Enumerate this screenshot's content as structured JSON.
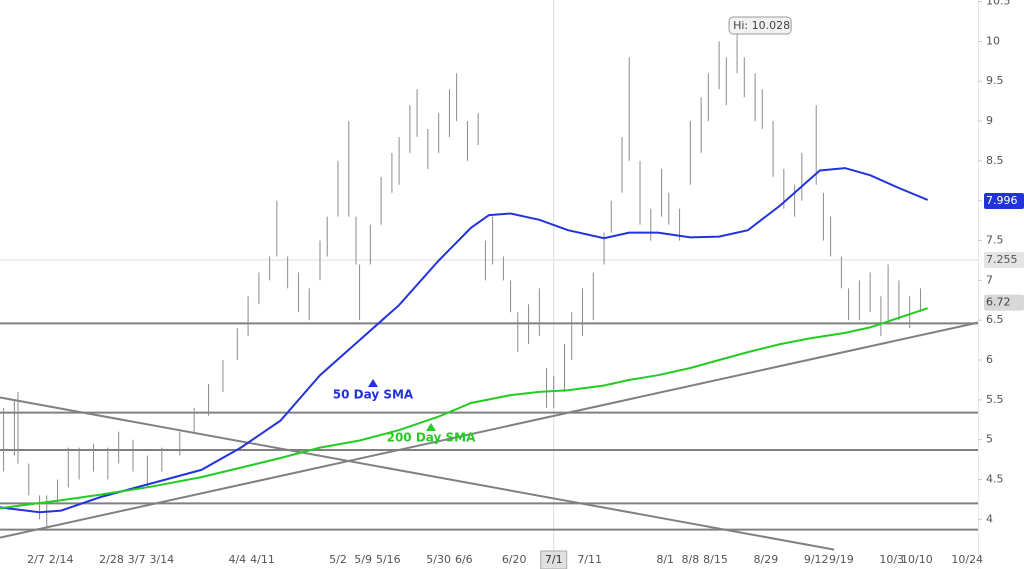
{
  "chart_data": {
    "type": "ohlc",
    "x": [
      "1/29",
      "2/1",
      "2/2",
      "2/5",
      "2/8",
      "2/10",
      "2/13",
      "2/16",
      "2/19",
      "2/23",
      "2/27",
      "3/2",
      "3/6",
      "3/10",
      "3/14",
      "3/19",
      "3/23",
      "3/27",
      "3/31",
      "4/4",
      "4/7",
      "4/10",
      "4/13",
      "4/15",
      "4/18",
      "4/21",
      "4/24",
      "4/27",
      "4/29",
      "5/2",
      "5/5",
      "5/7",
      "5/8",
      "5/11",
      "5/14",
      "5/17",
      "5/19",
      "5/22",
      "5/24",
      "5/27",
      "5/30",
      "6/2",
      "6/4",
      "6/7",
      "6/10",
      "6/12",
      "6/14",
      "6/17",
      "6/19",
      "6/21",
      "6/24",
      "6/27",
      "6/29",
      "7/1",
      "7/4",
      "7/6",
      "7/9",
      "7/12",
      "7/15",
      "7/17",
      "7/20",
      "7/22",
      "7/25",
      "7/28",
      "7/31",
      "8/2",
      "8/5",
      "8/8",
      "8/11",
      "8/13",
      "8/16",
      "8/18",
      "8/21",
      "8/23",
      "8/26",
      "8/28",
      "8/31",
      "9/3",
      "9/6",
      "9/8",
      "9/12",
      "9/14",
      "9/16",
      "9/19",
      "9/21",
      "9/24",
      "9/27",
      "9/30",
      "10/2",
      "10/5",
      "10/8",
      "10/11"
    ],
    "low": [
      4.6,
      4.8,
      4.7,
      4.3,
      4.0,
      3.9,
      4.2,
      4.4,
      4.5,
      4.6,
      4.5,
      4.7,
      4.6,
      4.4,
      4.6,
      4.8,
      5.1,
      5.3,
      5.6,
      6.0,
      6.3,
      6.7,
      7.0,
      7.3,
      6.9,
      6.6,
      6.5,
      7.0,
      7.3,
      7.8,
      7.8,
      7.2,
      6.5,
      7.2,
      7.7,
      8.1,
      8.2,
      8.6,
      8.8,
      8.4,
      8.6,
      8.8,
      9.0,
      8.5,
      8.7,
      7.0,
      7.2,
      7.0,
      6.6,
      6.1,
      6.2,
      6.3,
      5.4,
      5.4,
      5.6,
      6.0,
      6.3,
      6.5,
      7.2,
      7.6,
      8.1,
      8.5,
      7.7,
      7.5,
      7.8,
      7.7,
      7.5,
      8.2,
      8.6,
      9.0,
      9.4,
      9.2,
      9.6,
      9.3,
      9.0,
      8.9,
      8.3,
      7.9,
      7.8,
      8.0,
      8.2,
      7.5,
      7.3,
      6.9,
      6.5,
      6.5,
      6.6,
      6.3,
      6.5,
      6.5,
      6.4,
      6.6
    ],
    "high": [
      5.4,
      5.5,
      5.6,
      4.7,
      4.3,
      4.3,
      4.5,
      4.9,
      4.9,
      4.95,
      4.9,
      5.1,
      5.0,
      4.8,
      4.9,
      5.1,
      5.4,
      5.7,
      6.0,
      6.4,
      6.8,
      7.1,
      7.3,
      8.0,
      7.3,
      7.1,
      6.9,
      7.5,
      7.8,
      8.5,
      9.0,
      7.8,
      7.2,
      7.7,
      8.3,
      8.6,
      8.8,
      9.2,
      9.4,
      8.9,
      9.1,
      9.4,
      9.6,
      9.0,
      9.1,
      7.5,
      7.8,
      7.3,
      7.0,
      6.6,
      6.7,
      6.9,
      5.9,
      5.8,
      6.2,
      6.6,
      6.9,
      7.1,
      7.6,
      8.0,
      8.8,
      9.8,
      8.5,
      7.9,
      8.4,
      8.1,
      7.9,
      9.0,
      9.3,
      9.6,
      10.0,
      9.8,
      10.028,
      9.8,
      9.6,
      9.4,
      9.0,
      8.4,
      8.2,
      8.6,
      9.2,
      8.1,
      7.8,
      7.3,
      6.9,
      7.0,
      7.1,
      6.8,
      7.2,
      7.0,
      6.8,
      6.9
    ],
    "bar_color": "#8a8a8a",
    "series": [
      {
        "name": "50 Day SMA",
        "color": "#2233dd",
        "last_value": 7.996,
        "x": [
          "1/28",
          "2/8",
          "2/14",
          "2/25",
          "3/11",
          "3/25",
          "4/5",
          "4/16",
          "4/27",
          "5/8",
          "5/19",
          "5/30",
          "6/8",
          "6/13",
          "6/19",
          "6/27",
          "7/5",
          "7/15",
          "7/22",
          "7/30",
          "8/8",
          "8/16",
          "8/24",
          "9/2",
          "9/10",
          "9/13",
          "9/20",
          "9/27",
          "10/5",
          "10/13"
        ],
        "values": [
          4.15,
          4.09,
          4.11,
          4.28,
          4.45,
          4.62,
          4.9,
          5.24,
          5.81,
          6.25,
          6.69,
          7.25,
          7.66,
          7.82,
          7.84,
          7.76,
          7.63,
          7.53,
          7.6,
          7.6,
          7.54,
          7.55,
          7.63,
          7.94,
          8.26,
          8.38,
          8.41,
          8.32,
          8.16,
          8.01
        ]
      },
      {
        "name": "200 Day SMA",
        "color": "#22cc22",
        "x": [
          "1/28",
          "2/14",
          "2/25",
          "3/11",
          "3/25",
          "4/5",
          "4/16",
          "4/27",
          "5/8",
          "5/19",
          "5/30",
          "6/8",
          "6/19",
          "6/27",
          "7/5",
          "7/15",
          "7/22",
          "7/30",
          "8/8",
          "8/16",
          "8/24",
          "9/2",
          "9/10",
          "9/20",
          "9/27",
          "10/5",
          "10/13"
        ],
        "values": [
          4.14,
          4.24,
          4.31,
          4.41,
          4.53,
          4.65,
          4.77,
          4.9,
          4.99,
          5.12,
          5.29,
          5.46,
          5.56,
          5.6,
          5.62,
          5.68,
          5.75,
          5.81,
          5.9,
          6.0,
          6.1,
          6.2,
          6.27,
          6.34,
          6.41,
          6.53,
          6.65
        ]
      }
    ],
    "levels": [
      6.46,
      5.34,
      4.87,
      4.2,
      3.87
    ],
    "trendlines": [
      {
        "x": [
          "1/28",
          "9/17"
        ],
        "values": [
          5.53,
          3.62
        ]
      },
      {
        "x": [
          "1/28",
          "10/27"
        ],
        "values": [
          3.77,
          6.47
        ]
      }
    ],
    "line_color": "#808080",
    "crosshair": {
      "x": "7/1",
      "y": 7.255
    },
    "last_price": 6.72,
    "high_marker": {
      "x": "8/21",
      "value": 10.028,
      "label": "Hi: 10.028"
    },
    "xlim": [
      "1/28",
      "10/27"
    ],
    "xticks": [
      "2/7",
      "2/14",
      "2/28",
      "3/7",
      "3/14",
      "4/4",
      "4/11",
      "5/2",
      "5/9",
      "5/16",
      "5/30",
      "6/6",
      "6/20",
      "7/1",
      "7/11",
      "8/1",
      "8/8",
      "8/15",
      "8/29",
      "9/12",
      "9/19",
      "10/3",
      "10/10",
      "10/24"
    ],
    "ylim": [
      3.64,
      10.52
    ],
    "yticks": [
      4,
      4.5,
      5,
      5.5,
      6,
      6.5,
      7,
      7.5,
      8,
      8.5,
      9,
      9.5,
      10,
      10.5
    ]
  }
}
